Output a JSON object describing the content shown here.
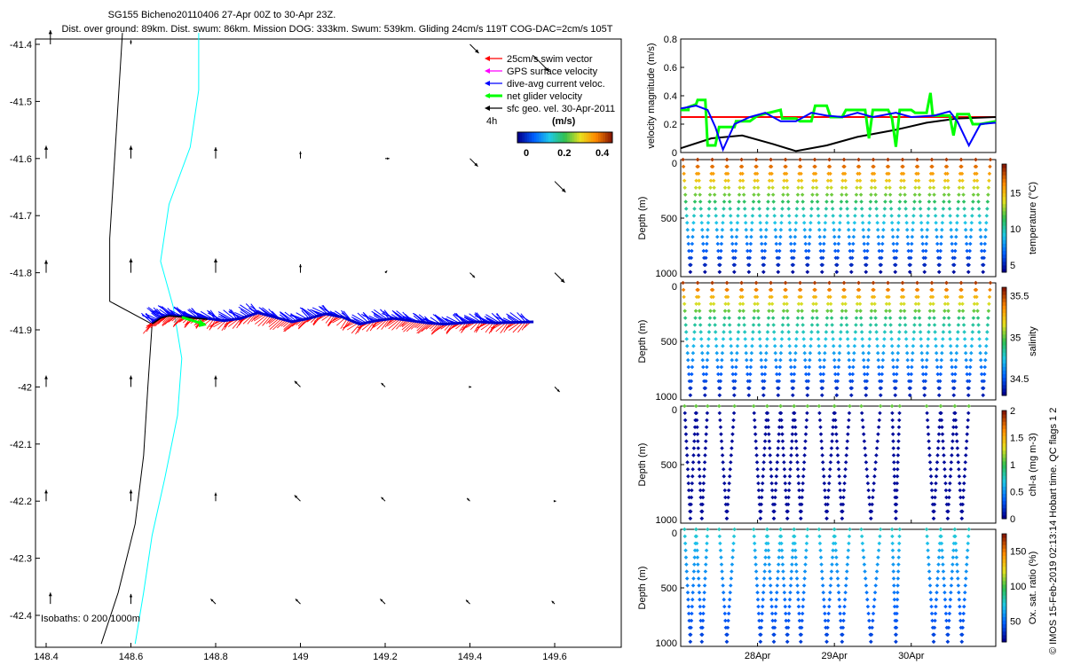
{
  "title_line1": "SG155 Bicheno20110406 27-Apr 00Z to 30-Apr 23Z.",
  "title_line2": "Dist. over ground: 89km. Dist. swum: 86km. Mission DOG: 333km. Swum: 539km. Gliding 24cm/s 119T COG-DAC=2cm/s 105T",
  "side_credit": "© IMOS 15-Feb-2019 02:13:14 Hobart time. QC flags 1  2",
  "colors": {
    "swim": "#ff0000",
    "gps": "#ff00ff",
    "dac": "#0000ff",
    "net": "#00ff00",
    "geo": "#000000",
    "isobath0": "#000000",
    "isobath200": "#000000",
    "isobath1000": "#00ffff"
  },
  "chart_data": [
    {
      "type": "map",
      "xlim": [
        148.4,
        149.7
      ],
      "ylim": [
        -42.45,
        -41.38
      ],
      "x_ticks": [
        "148.4",
        "148.6",
        "148.8",
        "149",
        "149.2",
        "149.4",
        "149.6"
      ],
      "y_ticks": [
        "-41.4",
        "-41.5",
        "-41.6",
        "-41.7",
        "-41.8",
        "-41.9",
        "-42",
        "-42.1",
        "-42.2",
        "-42.3",
        "-42.4"
      ],
      "legend": {
        "entries": [
          "25cm/s swim vector",
          "GPS surface velocity",
          "dive-avg current veloc.",
          "net glider velocity",
          "sfc geo. vel. 30-Apr-2011"
        ],
        "placement": "top-right"
      },
      "colorbar": {
        "label": "(m/s)",
        "ticks": [
          "0",
          "0.2",
          "0.4"
        ],
        "range": [
          0,
          0.5
        ]
      },
      "time_label": "4h",
      "isobath_label": "Isobaths: 0   200   1000m",
      "track": [
        [
          148.65,
          -41.888
        ],
        [
          148.67,
          -41.878
        ],
        [
          148.69,
          -41.874
        ],
        [
          148.72,
          -41.876
        ],
        [
          148.75,
          -41.878
        ],
        [
          148.78,
          -41.88
        ],
        [
          148.82,
          -41.884
        ],
        [
          148.86,
          -41.88
        ],
        [
          148.9,
          -41.87
        ],
        [
          148.94,
          -41.878
        ],
        [
          148.98,
          -41.886
        ],
        [
          149.02,
          -41.88
        ],
        [
          149.06,
          -41.872
        ],
        [
          149.1,
          -41.878
        ],
        [
          149.14,
          -41.89
        ],
        [
          149.18,
          -41.884
        ],
        [
          149.22,
          -41.88
        ],
        [
          149.26,
          -41.884
        ],
        [
          149.3,
          -41.888
        ],
        [
          149.34,
          -41.89
        ],
        [
          149.38,
          -41.888
        ],
        [
          149.42,
          -41.886
        ],
        [
          149.46,
          -41.888
        ],
        [
          149.5,
          -41.887
        ],
        [
          149.55,
          -41.886
        ]
      ],
      "geo_arrows": [
        {
          "lon": 148.41,
          "lat": -41.4,
          "dir": "N",
          "len": 1
        },
        {
          "lon": 148.6,
          "lat": -41.4,
          "dir": "N",
          "len": 0.3
        },
        {
          "lon": 149.4,
          "lat": -41.4,
          "dir": "SE",
          "len": 0.9
        },
        {
          "lon": 149.55,
          "lat": -41.42,
          "dir": "SE",
          "len": 1.6
        },
        {
          "lon": 148.4,
          "lat": -41.6,
          "dir": "N",
          "len": 0.9
        },
        {
          "lon": 148.6,
          "lat": -41.6,
          "dir": "N",
          "len": 0.9
        },
        {
          "lon": 148.8,
          "lat": -41.6,
          "dir": "N",
          "len": 0.8
        },
        {
          "lon": 149.0,
          "lat": -41.6,
          "dir": "N",
          "len": 0.5
        },
        {
          "lon": 149.2,
          "lat": -41.6,
          "dir": "E",
          "len": 0.3
        },
        {
          "lon": 149.4,
          "lat": -41.6,
          "dir": "SE",
          "len": 0.8
        },
        {
          "lon": 149.6,
          "lat": -41.64,
          "dir": "SE",
          "len": 1.1
        },
        {
          "lon": 148.4,
          "lat": -41.8,
          "dir": "N",
          "len": 0.9
        },
        {
          "lon": 148.6,
          "lat": -41.8,
          "dir": "N",
          "len": 1.0
        },
        {
          "lon": 148.8,
          "lat": -41.8,
          "dir": "N",
          "len": 1.0
        },
        {
          "lon": 149.0,
          "lat": -41.8,
          "dir": "N",
          "len": 0.6
        },
        {
          "lon": 149.2,
          "lat": -41.8,
          "dir": "NE",
          "len": 0.2
        },
        {
          "lon": 149.4,
          "lat": -41.8,
          "dir": "SE",
          "len": 0.5
        },
        {
          "lon": 149.6,
          "lat": -41.8,
          "dir": "SE",
          "len": 1.0
        },
        {
          "lon": 148.4,
          "lat": -42.0,
          "dir": "N",
          "len": 0.8
        },
        {
          "lon": 148.6,
          "lat": -42.0,
          "dir": "N",
          "len": 0.8
        },
        {
          "lon": 148.8,
          "lat": -42.0,
          "dir": "N",
          "len": 0.8
        },
        {
          "lon": 149.0,
          "lat": -42.0,
          "dir": "NW",
          "len": 0.6
        },
        {
          "lon": 149.2,
          "lat": -42.0,
          "dir": "NW",
          "len": 0.4
        },
        {
          "lon": 149.4,
          "lat": -42.0,
          "dir": "E",
          "len": 0.1
        },
        {
          "lon": 149.6,
          "lat": -42.0,
          "dir": "SE",
          "len": 0.5
        },
        {
          "lon": 148.4,
          "lat": -42.2,
          "dir": "N",
          "len": 0.8
        },
        {
          "lon": 148.6,
          "lat": -42.2,
          "dir": "N",
          "len": 0.8
        },
        {
          "lon": 148.8,
          "lat": -42.2,
          "dir": "N",
          "len": 0.6
        },
        {
          "lon": 149.0,
          "lat": -42.2,
          "dir": "NW",
          "len": 0.6
        },
        {
          "lon": 149.2,
          "lat": -42.2,
          "dir": "NW",
          "len": 0.4
        },
        {
          "lon": 149.4,
          "lat": -42.2,
          "dir": "NW",
          "len": 0.3
        },
        {
          "lon": 149.6,
          "lat": -42.2,
          "dir": "E",
          "len": 0.1
        },
        {
          "lon": 148.41,
          "lat": -42.38,
          "dir": "N",
          "len": 0.8
        },
        {
          "lon": 148.6,
          "lat": -42.38,
          "dir": "N",
          "len": 0.7
        },
        {
          "lon": 148.8,
          "lat": -42.38,
          "dir": "NW",
          "len": 0.5
        },
        {
          "lon": 149.0,
          "lat": -42.38,
          "dir": "NW",
          "len": 0.5
        },
        {
          "lon": 149.2,
          "lat": -42.38,
          "dir": "NW",
          "len": 0.5
        },
        {
          "lon": 149.4,
          "lat": -42.38,
          "dir": "NW",
          "len": 0.4
        },
        {
          "lon": 149.6,
          "lat": -42.38,
          "dir": "NW",
          "len": 0.3
        }
      ],
      "isobath_0": [
        [
          148.58,
          -41.38
        ],
        [
          148.57,
          -41.5
        ],
        [
          148.56,
          -41.62
        ],
        [
          148.55,
          -41.74
        ],
        [
          148.55,
          -41.85
        ],
        [
          148.65,
          -41.89
        ],
        [
          148.64,
          -42.0
        ],
        [
          148.63,
          -42.12
        ],
        [
          148.61,
          -42.24
        ],
        [
          148.57,
          -42.36
        ],
        [
          148.53,
          -42.45
        ]
      ],
      "isobath_1000": [
        [
          148.76,
          -41.38
        ],
        [
          148.76,
          -41.48
        ],
        [
          148.74,
          -41.58
        ],
        [
          148.69,
          -41.68
        ],
        [
          148.67,
          -41.78
        ],
        [
          148.7,
          -41.86
        ],
        [
          148.72,
          -41.95
        ],
        [
          148.71,
          -42.05
        ],
        [
          148.68,
          -42.16
        ],
        [
          148.65,
          -42.26
        ],
        [
          148.63,
          -42.36
        ],
        [
          148.61,
          -42.45
        ]
      ]
    },
    {
      "type": "line",
      "ylabel": "velocity magnitude (m/s)",
      "ylim": [
        0,
        0.8
      ],
      "y_ticks": [
        "0",
        "0.2",
        "0.4",
        "0.6",
        "0.8"
      ],
      "x_range": [
        0,
        4.1
      ],
      "series": [
        {
          "color": "#ff0000",
          "points": [
            [
              0,
              0.25
            ],
            [
              4.1,
              0.25
            ]
          ]
        },
        {
          "color": "#000000",
          "points": [
            [
              0,
              0.03
            ],
            [
              0.4,
              0.1
            ],
            [
              0.8,
              0.12
            ],
            [
              1.2,
              0.06
            ],
            [
              1.5,
              0.01
            ],
            [
              1.9,
              0.05
            ],
            [
              2.3,
              0.11
            ],
            [
              2.8,
              0.16
            ],
            [
              3.2,
              0.21
            ],
            [
              3.6,
              0.24
            ],
            [
              4.1,
              0.25
            ]
          ]
        },
        {
          "color": "#00ff00",
          "points": [
            [
              0,
              0.3
            ],
            [
              0.1,
              0.3
            ],
            [
              0.1,
              0.32
            ],
            [
              0.2,
              0.34
            ],
            [
              0.22,
              0.37
            ],
            [
              0.32,
              0.37
            ],
            [
              0.35,
              0.05
            ],
            [
              0.45,
              0.05
            ],
            [
              0.5,
              0.18
            ],
            [
              0.7,
              0.18
            ],
            [
              0.72,
              0.22
            ],
            [
              0.9,
              0.22
            ],
            [
              1.0,
              0.26
            ],
            [
              1.3,
              0.3
            ],
            [
              1.32,
              0.24
            ],
            [
              1.5,
              0.24
            ],
            [
              1.55,
              0.22
            ],
            [
              1.7,
              0.22
            ],
            [
              1.75,
              0.33
            ],
            [
              1.9,
              0.33
            ],
            [
              1.95,
              0.25
            ],
            [
              2.1,
              0.25
            ],
            [
              2.15,
              0.3
            ],
            [
              2.4,
              0.3
            ],
            [
              2.45,
              0.1
            ],
            [
              2.5,
              0.3
            ],
            [
              2.7,
              0.3
            ],
            [
              2.75,
              0.24
            ],
            [
              2.8,
              0.04
            ],
            [
              2.85,
              0.3
            ],
            [
              3.0,
              0.3
            ],
            [
              3.05,
              0.28
            ],
            [
              3.2,
              0.28
            ],
            [
              3.25,
              0.42
            ],
            [
              3.28,
              0.26
            ],
            [
              3.5,
              0.26
            ],
            [
              3.55,
              0.12
            ],
            [
              3.6,
              0.27
            ],
            [
              3.75,
              0.27
            ],
            [
              3.8,
              0.2
            ],
            [
              3.9,
              0.2
            ],
            [
              4.1,
              0.22
            ]
          ]
        },
        {
          "color": "#0000ff",
          "points": [
            [
              0,
              0.31
            ],
            [
              0.2,
              0.33
            ],
            [
              0.35,
              0.3
            ],
            [
              0.45,
              0.18
            ],
            [
              0.55,
              0.02
            ],
            [
              0.7,
              0.2
            ],
            [
              0.9,
              0.25
            ],
            [
              1.1,
              0.28
            ],
            [
              1.3,
              0.22
            ],
            [
              1.5,
              0.22
            ],
            [
              1.7,
              0.28
            ],
            [
              1.9,
              0.26
            ],
            [
              2.1,
              0.25
            ],
            [
              2.3,
              0.28
            ],
            [
              2.5,
              0.25
            ],
            [
              2.8,
              0.28
            ],
            [
              3.0,
              0.25
            ],
            [
              3.3,
              0.26
            ],
            [
              3.5,
              0.29
            ],
            [
              3.6,
              0.22
            ],
            [
              3.75,
              0.05
            ],
            [
              3.9,
              0.2
            ],
            [
              4.1,
              0.21
            ]
          ]
        }
      ]
    },
    {
      "type": "scatter",
      "ylabel": "Depth (m)",
      "y_ticks": [
        "0",
        "500",
        "1000"
      ],
      "ylim": [
        1000,
        0
      ],
      "colorbar_label": "temperature (°C)",
      "colorbar_ticks": [
        "5",
        "10",
        "15"
      ],
      "colorbar_range": [
        4,
        19
      ],
      "dive_count": 21,
      "colormap_stops": [
        "#00008f",
        "#0060ff",
        "#20c8e8",
        "#30c050",
        "#e8e020",
        "#ff8a00",
        "#8a1a00"
      ]
    },
    {
      "type": "scatter",
      "ylabel": "Depth (m)",
      "y_ticks": [
        "0",
        "500",
        "1000"
      ],
      "ylim": [
        1000,
        0
      ],
      "colorbar_label": "salinity",
      "colorbar_ticks": [
        "34.5",
        "35",
        "35.5"
      ],
      "colorbar_range": [
        34.3,
        35.6
      ],
      "dive_count": 21
    },
    {
      "type": "scatter",
      "ylabel": "Depth (m)",
      "y_ticks": [
        "0",
        "500",
        "1000"
      ],
      "ylim": [
        1000,
        0
      ],
      "colorbar_label": "chl-a (mg m-3)",
      "colorbar_ticks": [
        "0",
        "0.5",
        "1",
        "1.5",
        "2"
      ],
      "colorbar_range": [
        0,
        2
      ],
      "profile_groups": [
        [
          0.05,
          0.35
        ],
        [
          0.5,
          0.7
        ],
        [
          0.95,
          1.65
        ],
        [
          1.8,
          2.2
        ],
        [
          2.35,
          2.6
        ],
        [
          2.75,
          2.85
        ],
        [
          3.2,
          3.75
        ]
      ]
    },
    {
      "type": "scatter",
      "ylabel": "Depth (m)",
      "y_ticks": [
        "0",
        "500",
        "1000"
      ],
      "ylim": [
        1000,
        0
      ],
      "colorbar_label": "Ox. sat. ratio (%)",
      "colorbar_ticks": [
        "50",
        "100",
        "150"
      ],
      "colorbar_range": [
        20,
        175
      ],
      "x_ticks": [
        "28Apr",
        "29Apr",
        "30Apr"
      ],
      "x_tick_days": [
        1,
        2,
        3
      ],
      "profile_groups": [
        [
          0.05,
          0.35
        ],
        [
          0.5,
          0.7
        ],
        [
          0.95,
          1.65
        ],
        [
          1.8,
          2.2
        ],
        [
          2.35,
          2.6
        ],
        [
          2.75,
          2.85
        ],
        [
          3.2,
          3.75
        ]
      ]
    }
  ]
}
